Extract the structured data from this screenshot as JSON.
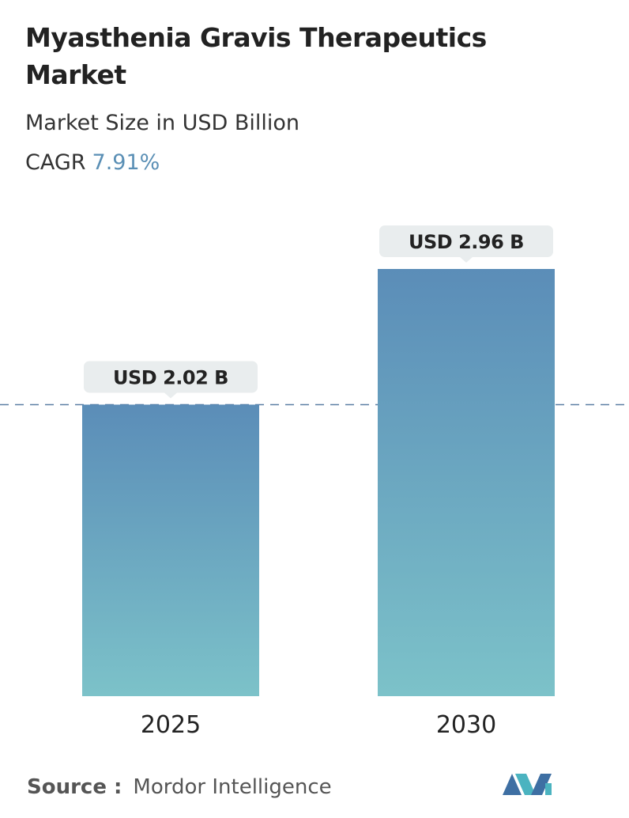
{
  "chart_data": {
    "type": "bar",
    "title": "Myasthenia Gravis Therapeutics Market",
    "subtitle": "Market Size in USD Billion",
    "cagr": {
      "label": "CAGR",
      "value": "7.91%"
    },
    "categories": [
      "2025",
      "2030"
    ],
    "values": [
      2.02,
      2.96
    ],
    "value_labels": [
      "USD 2.02 B",
      "USD 2.96 B"
    ],
    "colors": {
      "top": "#5b8db8",
      "bottom": "#7cc2c9"
    },
    "reference_line": true,
    "source": {
      "label": "Source :",
      "name": "Mordor Intelligence"
    }
  }
}
